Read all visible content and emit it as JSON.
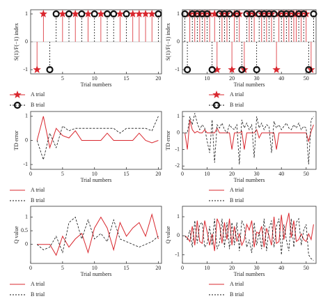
{
  "chart_data": [
    {
      "type": "stem",
      "x_label": "Trial numbers",
      "y_label": "S(1)/F(−1) index",
      "x": [
        1,
        2,
        3,
        4,
        5,
        6,
        7,
        8,
        9,
        10,
        11,
        12,
        13,
        14,
        15,
        16,
        17,
        18,
        19,
        20
      ],
      "xlim": [
        0,
        20.5
      ],
      "xticks": [
        5,
        10,
        15,
        20
      ],
      "ylim": [
        -1.15,
        1.15
      ],
      "yticks": [
        -1,
        0,
        1
      ],
      "series": [
        {
          "name": "A trial",
          "color": "#d9272e",
          "style": "solid",
          "marker": "star",
          "values": [
            -1,
            1,
            null,
            null,
            1,
            null,
            1,
            null,
            1,
            null,
            1,
            null,
            null,
            1,
            null,
            1,
            1,
            1,
            1,
            null
          ]
        },
        {
          "name": "B trial",
          "color": "#111111",
          "style": "dashed",
          "marker": "circle",
          "values": [
            null,
            null,
            -1,
            1,
            null,
            1,
            null,
            1,
            null,
            1,
            null,
            1,
            1,
            null,
            1,
            null,
            null,
            null,
            null,
            1
          ]
        }
      ]
    },
    {
      "type": "stem",
      "x_label": "Trial numbers",
      "y_label": "S(1)/F(−1) index",
      "x": [
        1,
        2,
        3,
        4,
        5,
        6,
        7,
        8,
        9,
        10,
        11,
        12,
        13,
        14,
        15,
        16,
        17,
        18,
        19,
        20,
        21,
        22,
        23,
        24,
        25,
        26,
        27,
        28,
        29,
        30,
        31,
        32,
        33,
        34,
        35,
        36,
        37,
        38,
        39,
        40,
        41,
        42,
        43,
        44,
        45,
        46,
        47,
        48,
        49,
        50,
        51,
        52,
        53
      ],
      "xlim": [
        0,
        54
      ],
      "xticks": [
        10,
        20,
        30,
        40,
        50
      ],
      "ylim": [
        -1.15,
        1.15
      ],
      "yticks": [
        -1,
        0,
        1
      ],
      "series": [
        {
          "name": "A trial",
          "color": "#d9272e",
          "style": "solid",
          "marker": "star",
          "values": [
            null,
            null,
            1,
            null,
            1,
            null,
            1,
            null,
            1,
            null,
            1,
            null,
            1,
            -1,
            null,
            1,
            null,
            1,
            null,
            -1,
            1,
            null,
            1,
            null,
            -1,
            null,
            1,
            null,
            1,
            null,
            null,
            1,
            null,
            1,
            null,
            1,
            null,
            -1,
            1,
            null,
            1,
            null,
            1,
            null,
            1,
            1,
            null,
            1,
            null,
            1,
            null,
            -1,
            null
          ]
        },
        {
          "name": "B trial",
          "color": "#111111",
          "style": "dashed",
          "marker": "circle",
          "values": [
            1,
            -1,
            null,
            1,
            null,
            1,
            null,
            1,
            null,
            1,
            null,
            -1,
            null,
            null,
            1,
            null,
            1,
            null,
            1,
            null,
            null,
            1,
            null,
            -1,
            null,
            1,
            null,
            1,
            null,
            -1,
            1,
            null,
            1,
            null,
            1,
            null,
            1,
            null,
            null,
            1,
            null,
            1,
            null,
            1,
            null,
            null,
            1,
            null,
            1,
            null,
            -1,
            null,
            1
          ]
        }
      ]
    },
    {
      "type": "line",
      "x_label": "Trial numbers",
      "y_label": "TD error",
      "x": [
        1,
        2,
        3,
        4,
        5,
        6,
        7,
        8,
        9,
        10,
        11,
        12,
        13,
        14,
        15,
        16,
        17,
        18,
        19,
        20
      ],
      "xlim": [
        0,
        20.5
      ],
      "xticks": [
        0,
        5,
        10,
        15,
        20
      ],
      "ylim": [
        -1.2,
        1.2
      ],
      "yticks": [
        -1,
        0,
        1
      ],
      "series": [
        {
          "name": "A trial",
          "color": "#d9272e",
          "style": "solid",
          "values": [
            0,
            1,
            -0.3,
            0.5,
            0.2,
            0.1,
            0.4,
            0,
            0,
            0,
            0,
            0.3,
            0,
            0,
            0,
            0,
            0.3,
            0,
            -0.1,
            0
          ]
        },
        {
          "name": "B trial",
          "color": "#111111",
          "style": "dashed",
          "values": [
            0,
            -0.8,
            0.3,
            -0.3,
            0.6,
            0.4,
            0.5,
            0.5,
            0.5,
            0.5,
            0.5,
            0.5,
            0.5,
            0.3,
            0.5,
            0.5,
            0.5,
            0.5,
            0.4,
            1
          ]
        }
      ]
    },
    {
      "type": "line",
      "x_label": "Trial numbers",
      "y_label": "TD error",
      "x": [
        1,
        2,
        3,
        4,
        5,
        6,
        7,
        8,
        9,
        10,
        11,
        12,
        13,
        14,
        15,
        16,
        17,
        18,
        19,
        20,
        21,
        22,
        23,
        24,
        25,
        26,
        27,
        28,
        29,
        30,
        31,
        32,
        33,
        34,
        35,
        36,
        37,
        38,
        39,
        40,
        41,
        42,
        43,
        44,
        45,
        46,
        47,
        48,
        49,
        50,
        51,
        52,
        53
      ],
      "xlim": [
        0,
        54
      ],
      "xticks": [
        0,
        10,
        20,
        30,
        40,
        50
      ],
      "ylim": [
        -2.2,
        1.3
      ],
      "yticks": [
        -2,
        -1,
        0,
        1
      ],
      "series": [
        {
          "name": "A trial",
          "color": "#d9272e",
          "style": "solid",
          "values": [
            0,
            -1,
            0.8,
            0.2,
            0,
            0.1,
            0,
            0,
            0.2,
            0,
            0,
            0,
            0,
            0.3,
            0,
            0,
            0,
            0,
            0,
            -1,
            0,
            0,
            0,
            0.1,
            -1,
            0,
            0,
            0,
            0,
            0.2,
            -0.3,
            0,
            0,
            0,
            0,
            0,
            0,
            -1,
            0,
            0,
            0,
            0,
            0,
            0,
            0,
            0,
            0,
            0,
            0,
            0,
            -0.5,
            0.1,
            0.5
          ]
        },
        {
          "name": "B trial",
          "color": "#111111",
          "style": "dashed",
          "values": [
            0,
            0,
            1,
            0.5,
            1.2,
            0.6,
            0.2,
            0.5,
            0.3,
            -0.5,
            -1.2,
            0.8,
            -1.8,
            0.5,
            0.3,
            0.6,
            0.2,
            0,
            0.5,
            0.3,
            0.2,
            0.5,
            -1.9,
            0.8,
            0.3,
            0.6,
            0.2,
            0.5,
            -1.5,
            1,
            0.3,
            0.6,
            0.2,
            0.5,
            0.4,
            -1.2,
            0.7,
            0.3,
            0.5,
            0.2,
            0.4,
            0.6,
            0.3,
            0.2,
            0.5,
            0.3,
            0.6,
            0.2,
            0.4,
            0.3,
            -1.9,
            0.8,
            1
          ]
        }
      ]
    },
    {
      "type": "line",
      "x_label": "Trial numbers",
      "y_label": "Q value",
      "x": [
        1,
        2,
        3,
        4,
        5,
        6,
        7,
        8,
        9,
        10,
        11,
        12,
        13,
        14,
        15,
        16,
        17,
        18,
        19,
        20
      ],
      "xlim": [
        0,
        20.5
      ],
      "xticks": [
        0,
        5,
        10,
        15,
        20
      ],
      "ylim": [
        -0.7,
        1.4
      ],
      "yticks": [
        0,
        0.5,
        1
      ],
      "series": [
        {
          "name": "A trial",
          "color": "#d9272e",
          "style": "solid",
          "values": [
            0,
            0,
            0,
            -0.4,
            0.3,
            -0.1,
            0.2,
            0.4,
            -0.3,
            0.6,
            1,
            0.6,
            -0.2,
            0.8,
            0.3,
            0.6,
            0.8,
            0.3,
            1.1,
            0.2
          ]
        },
        {
          "name": "B trial",
          "color": "#111111",
          "style": "dashed",
          "values": [
            0,
            -0.2,
            -0.1,
            0.3,
            -0.3,
            0.8,
            1,
            0.2,
            0.9,
            0.2,
            0.4,
            0.1,
            0.9,
            0.2,
            0.1,
            0,
            -0.1,
            0,
            0.1,
            0.3
          ]
        }
      ]
    },
    {
      "type": "line",
      "x_label": "Trial numbers",
      "y_label": "Q value",
      "x": [
        1,
        2,
        3,
        4,
        5,
        6,
        7,
        8,
        9,
        10,
        11,
        12,
        13,
        14,
        15,
        16,
        17,
        18,
        19,
        20,
        21,
        22,
        23,
        24,
        25,
        26,
        27,
        28,
        29,
        30,
        31,
        32,
        33,
        34,
        35,
        36,
        37,
        38,
        39,
        40,
        41,
        42,
        43,
        44,
        45,
        46,
        47,
        48,
        49,
        50,
        51,
        52,
        53
      ],
      "xlim": [
        0,
        54
      ],
      "xticks": [
        0,
        10,
        20,
        30,
        40,
        50
      ],
      "ylim": [
        -1.45,
        1.55
      ],
      "yticks": [
        -1,
        0,
        1
      ],
      "series": [
        {
          "name": "A trial",
          "color": "#d9272e",
          "style": "solid",
          "values": [
            0,
            -0.1,
            -0.3,
            0.5,
            -0.5,
            0.8,
            -0.3,
            -0.4,
            0.8,
            0.2,
            -0.5,
            0.1,
            -0.8,
            0.9,
            0.6,
            -0.4,
            0.7,
            -0.2,
            0.9,
            -0.5,
            0.5,
            -0.3,
            0.1,
            -0.5,
            -0.2,
            0.6,
            0.3,
            0.8,
            -0.6,
            0.2,
            0.1,
            0.5,
            -0.6,
            0.4,
            0,
            -0.5,
            1,
            -0.4,
            -0.3,
            1.1,
            -0.2,
            0.6,
            1.2,
            -0.1,
            0.8,
            -0.3,
            -0.2,
            0.1,
            -0.2,
            -0.3,
            0.1,
            -0.2,
            0.6
          ]
        },
        {
          "name": "B trial",
          "color": "#111111",
          "style": "dashed",
          "values": [
            0,
            -0.2,
            0.3,
            -0.6,
            0.8,
            -0.4,
            0.6,
            0.7,
            -0.6,
            -0.4,
            0.5,
            -0.5,
            0.9,
            -0.7,
            -0.4,
            0.9,
            -0.6,
            0.7,
            -0.7,
            0.7,
            -0.5,
            0.7,
            -0.8,
            0.8,
            0.5,
            -0.6,
            -0.2,
            -0.9,
            0.7,
            -0.5,
            0.2,
            -0.7,
            0.9,
            -0.8,
            0.4,
            0.8,
            -0.6,
            0.5,
            0.9,
            -1,
            0.6,
            -0.2,
            -0.8,
            0.9,
            -0.6,
            0.7,
            0.9,
            -0.5,
            0.3,
            0.6,
            -1,
            -1.2,
            -1.3
          ]
        }
      ]
    }
  ]
}
